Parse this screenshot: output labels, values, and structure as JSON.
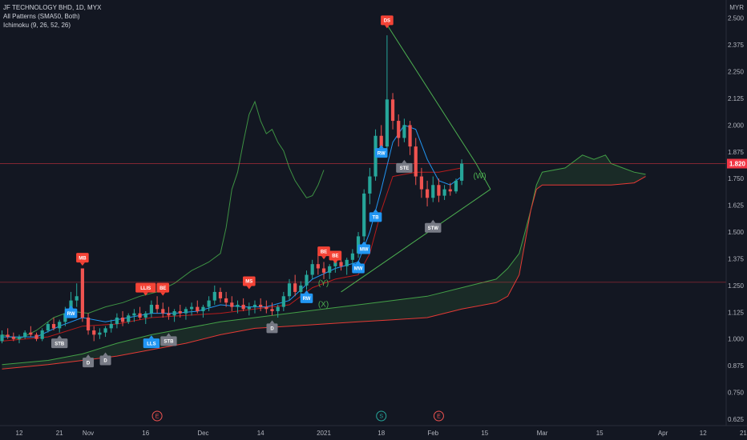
{
  "legend": {
    "title": "JF TECHNOLOGY BHD, 1D, MYX",
    "indicator1": "All Patterns (SMA50, Both)",
    "indicator2": "Ichimoku (9, 26, 52, 26)"
  },
  "chart_data": {
    "type": "candlestick",
    "currency": "MYR",
    "ylim": [
      0.6,
      2.6
    ],
    "y_ticks": [
      0.625,
      0.75,
      0.875,
      1.0,
      1.125,
      1.25,
      1.375,
      1.5,
      1.625,
      1.75,
      1.875,
      2.0,
      2.125,
      2.25,
      2.375,
      2.5
    ],
    "y_tick_labels": [
      "0.625",
      "0.750",
      "0.875",
      "1.000",
      "1.125",
      "1.250",
      "1.375",
      "1.500",
      "1.625",
      "1.750",
      "1.875",
      "2.000",
      "2.125",
      "2.250",
      "2.375",
      "2.500"
    ],
    "x_ticks": [
      {
        "label": "12",
        "bar": 3
      },
      {
        "label": "21",
        "bar": 10
      },
      {
        "label": "Nov",
        "bar": 15
      },
      {
        "label": "16",
        "bar": 25
      },
      {
        "label": "Dec",
        "bar": 35
      },
      {
        "label": "14",
        "bar": 45
      },
      {
        "label": "2021",
        "bar": 56
      },
      {
        "label": "18",
        "bar": 66
      },
      {
        "label": "Feb",
        "bar": 75
      },
      {
        "label": "15",
        "bar": 84
      },
      {
        "label": "Mar",
        "bar": 94
      },
      {
        "label": "15",
        "bar": 104
      },
      {
        "label": "Apr",
        "bar": 115
      },
      {
        "label": "12",
        "bar": 122
      },
      {
        "label": "21",
        "bar": 129
      }
    ],
    "current_price": 1.82,
    "current_price_label": "1.820",
    "horizontal_line": 1.265,
    "candles": [
      [
        0.99,
        1.04,
        0.98,
        1.02
      ],
      [
        1.02,
        1.05,
        1.0,
        1.01
      ],
      [
        1.01,
        1.03,
        0.99,
        1.0
      ],
      [
        1.0,
        1.02,
        0.98,
        1.01
      ],
      [
        1.01,
        1.04,
        1.0,
        1.03
      ],
      [
        1.03,
        1.06,
        1.01,
        1.02
      ],
      [
        1.02,
        1.03,
        0.99,
        1.0
      ],
      [
        1.0,
        1.05,
        0.99,
        1.04
      ],
      [
        1.04,
        1.08,
        1.03,
        1.07
      ],
      [
        1.07,
        1.1,
        1.04,
        1.05
      ],
      [
        1.05,
        1.09,
        1.03,
        1.08
      ],
      [
        1.08,
        1.15,
        1.06,
        1.12
      ],
      [
        1.12,
        1.22,
        1.1,
        1.18
      ],
      [
        1.18,
        1.26,
        1.15,
        1.2
      ],
      [
        1.33,
        1.33,
        1.08,
        1.1
      ],
      [
        1.1,
        1.12,
        1.02,
        1.04
      ],
      [
        1.04,
        1.06,
        0.99,
        1.02
      ],
      [
        1.02,
        1.05,
        1.0,
        1.03
      ],
      [
        1.03,
        1.06,
        1.01,
        1.05
      ],
      [
        1.05,
        1.09,
        1.03,
        1.07
      ],
      [
        1.07,
        1.12,
        1.05,
        1.1
      ],
      [
        1.1,
        1.13,
        1.06,
        1.08
      ],
      [
        1.08,
        1.12,
        1.07,
        1.11
      ],
      [
        1.11,
        1.14,
        1.08,
        1.12
      ],
      [
        1.12,
        1.15,
        1.09,
        1.1
      ],
      [
        1.1,
        1.13,
        1.07,
        1.12
      ],
      [
        1.12,
        1.18,
        1.1,
        1.16
      ],
      [
        1.16,
        1.2,
        1.12,
        1.14
      ],
      [
        1.14,
        1.17,
        1.1,
        1.12
      ],
      [
        1.12,
        1.15,
        1.09,
        1.11
      ],
      [
        1.11,
        1.14,
        1.08,
        1.13
      ],
      [
        1.13,
        1.16,
        1.1,
        1.12
      ],
      [
        1.12,
        1.15,
        1.09,
        1.14
      ],
      [
        1.14,
        1.17,
        1.11,
        1.15
      ],
      [
        1.15,
        1.18,
        1.12,
        1.13
      ],
      [
        1.13,
        1.16,
        1.1,
        1.15
      ],
      [
        1.15,
        1.2,
        1.13,
        1.18
      ],
      [
        1.18,
        1.25,
        1.16,
        1.22
      ],
      [
        1.22,
        1.24,
        1.17,
        1.19
      ],
      [
        1.19,
        1.22,
        1.15,
        1.17
      ],
      [
        1.17,
        1.2,
        1.13,
        1.15
      ],
      [
        1.15,
        1.18,
        1.12,
        1.16
      ],
      [
        1.16,
        1.19,
        1.13,
        1.14
      ],
      [
        1.14,
        1.17,
        1.11,
        1.15
      ],
      [
        1.15,
        1.18,
        1.12,
        1.16
      ],
      [
        1.16,
        1.19,
        1.13,
        1.15
      ],
      [
        1.15,
        1.18,
        1.12,
        1.14
      ],
      [
        1.14,
        1.17,
        1.11,
        1.13
      ],
      [
        1.13,
        1.16,
        1.1,
        1.15
      ],
      [
        1.15,
        1.22,
        1.13,
        1.2
      ],
      [
        1.2,
        1.28,
        1.18,
        1.26
      ],
      [
        1.26,
        1.3,
        1.2,
        1.22
      ],
      [
        1.22,
        1.27,
        1.19,
        1.25
      ],
      [
        1.25,
        1.32,
        1.23,
        1.3
      ],
      [
        1.3,
        1.37,
        1.28,
        1.35
      ],
      [
        1.35,
        1.4,
        1.3,
        1.33
      ],
      [
        1.33,
        1.36,
        1.28,
        1.31
      ],
      [
        1.31,
        1.35,
        1.28,
        1.34
      ],
      [
        1.34,
        1.38,
        1.31,
        1.36
      ],
      [
        1.36,
        1.4,
        1.32,
        1.34
      ],
      [
        1.34,
        1.38,
        1.3,
        1.37
      ],
      [
        1.37,
        1.42,
        1.35,
        1.4
      ],
      [
        1.4,
        1.5,
        1.38,
        1.48
      ],
      [
        1.48,
        1.7,
        1.46,
        1.68
      ],
      [
        1.68,
        1.8,
        1.63,
        1.76
      ],
      [
        1.76,
        1.98,
        1.74,
        1.95
      ],
      [
        1.95,
        2.0,
        1.85,
        1.9
      ],
      [
        1.9,
        2.42,
        1.88,
        2.12
      ],
      [
        2.12,
        2.15,
        1.98,
        2.02
      ],
      [
        2.02,
        2.05,
        1.9,
        1.94
      ],
      [
        1.94,
        2.03,
        1.92,
        2.0
      ],
      [
        2.0,
        2.02,
        1.86,
        1.9
      ],
      [
        1.9,
        1.94,
        1.72,
        1.76
      ],
      [
        1.76,
        1.8,
        1.66,
        1.7
      ],
      [
        1.7,
        1.74,
        1.62,
        1.66
      ],
      [
        1.66,
        1.76,
        1.64,
        1.72
      ],
      [
        1.72,
        1.75,
        1.64,
        1.67
      ],
      [
        1.67,
        1.72,
        1.65,
        1.7
      ],
      [
        1.7,
        1.73,
        1.67,
        1.69
      ],
      [
        1.69,
        1.75,
        1.68,
        1.74
      ],
      [
        1.74,
        1.84,
        1.72,
        1.82
      ]
    ],
    "pattern_labels": [
      {
        "text": "MB",
        "bar": 14,
        "price": 1.38,
        "type": "bear"
      },
      {
        "text": "RW",
        "bar": 12,
        "price": 1.12,
        "type": "bull"
      },
      {
        "text": "STB",
        "bar": 10,
        "price": 0.98,
        "type": "neutral"
      },
      {
        "text": "D",
        "bar": 15,
        "price": 0.89,
        "type": "neutral"
      },
      {
        "text": "D",
        "bar": 18,
        "price": 0.9,
        "type": "neutral"
      },
      {
        "text": "LLIS",
        "bar": 25,
        "price": 1.24,
        "type": "bear"
      },
      {
        "text": "BE",
        "bar": 28,
        "price": 1.24,
        "type": "bear"
      },
      {
        "text": "LLS",
        "bar": 26,
        "price": 0.98,
        "type": "bull"
      },
      {
        "text": "STB",
        "bar": 29,
        "price": 0.99,
        "type": "neutral"
      },
      {
        "text": "MS",
        "bar": 43,
        "price": 1.27,
        "type": "bear"
      },
      {
        "text": "D",
        "bar": 47,
        "price": 1.05,
        "type": "neutral"
      },
      {
        "text": "RW",
        "bar": 53,
        "price": 1.19,
        "type": "bull"
      },
      {
        "text": "BE",
        "bar": 56,
        "price": 1.41,
        "type": "bear"
      },
      {
        "text": "BE",
        "bar": 58,
        "price": 1.39,
        "type": "bear"
      },
      {
        "text": "MW",
        "bar": 62,
        "price": 1.33,
        "type": "bull"
      },
      {
        "text": "MW",
        "bar": 63,
        "price": 1.42,
        "type": "bull"
      },
      {
        "text": "TB",
        "bar": 65,
        "price": 1.57,
        "type": "bull"
      },
      {
        "text": "RW",
        "bar": 66,
        "price": 1.87,
        "type": "bull"
      },
      {
        "text": "DS",
        "bar": 67,
        "price": 2.49,
        "type": "bear"
      },
      {
        "text": "STE",
        "bar": 70,
        "price": 1.8,
        "type": "neutral"
      },
      {
        "text": "STW",
        "bar": 75,
        "price": 1.52,
        "type": "neutral"
      }
    ],
    "wave_labels": [
      {
        "text": "(Y)",
        "bar": 55,
        "price": 1.25
      },
      {
        "text": "(X)",
        "bar": 55,
        "price": 1.15
      },
      {
        "text": "(W)",
        "bar": 82,
        "price": 1.75
      }
    ],
    "event_markers": [
      {
        "text": "E",
        "bar": 27,
        "color": "#ef5350"
      },
      {
        "text": "S",
        "bar": 66,
        "color": "#26a69a"
      },
      {
        "text": "E",
        "bar": 76,
        "color": "#ef5350"
      }
    ],
    "lagging_span": [
      [
        0,
        1.02
      ],
      [
        3,
        1.0
      ],
      [
        6,
        1.04
      ],
      [
        9,
        1.1
      ],
      [
        12,
        1.13
      ],
      [
        15,
        1.12
      ],
      [
        18,
        1.15
      ],
      [
        21,
        1.17
      ],
      [
        24,
        1.2
      ],
      [
        27,
        1.22
      ],
      [
        30,
        1.26
      ],
      [
        33,
        1.32
      ],
      [
        36,
        1.36
      ],
      [
        38,
        1.4
      ],
      [
        39,
        1.52
      ],
      [
        40,
        1.7
      ],
      [
        41,
        1.78
      ],
      [
        42,
        1.92
      ],
      [
        43,
        2.05
      ],
      [
        44,
        2.11
      ],
      [
        45,
        2.02
      ],
      [
        46,
        1.96
      ],
      [
        47,
        1.98
      ],
      [
        48,
        1.92
      ],
      [
        49,
        1.88
      ],
      [
        50,
        1.8
      ],
      [
        51,
        1.74
      ],
      [
        52,
        1.7
      ],
      [
        53,
        1.66
      ],
      [
        54,
        1.67
      ],
      [
        55,
        1.72
      ],
      [
        56,
        1.79
      ]
    ],
    "tenkan": [
      [
        0,
        1.01
      ],
      [
        6,
        1.01
      ],
      [
        10,
        1.06
      ],
      [
        14,
        1.1
      ],
      [
        18,
        1.08
      ],
      [
        22,
        1.1
      ],
      [
        26,
        1.12
      ],
      [
        30,
        1.12
      ],
      [
        34,
        1.13
      ],
      [
        38,
        1.16
      ],
      [
        42,
        1.15
      ],
      [
        46,
        1.15
      ],
      [
        50,
        1.18
      ],
      [
        54,
        1.28
      ],
      [
        58,
        1.33
      ],
      [
        62,
        1.36
      ],
      [
        64,
        1.5
      ],
      [
        66,
        1.7
      ],
      [
        68,
        1.92
      ],
      [
        70,
        2.0
      ],
      [
        72,
        1.98
      ],
      [
        74,
        1.84
      ],
      [
        76,
        1.74
      ],
      [
        78,
        1.72
      ],
      [
        80,
        1.76
      ]
    ],
    "kijun": [
      [
        0,
        0.99
      ],
      [
        8,
        1.01
      ],
      [
        14,
        1.06
      ],
      [
        20,
        1.07
      ],
      [
        26,
        1.1
      ],
      [
        32,
        1.11
      ],
      [
        38,
        1.12
      ],
      [
        44,
        1.14
      ],
      [
        50,
        1.16
      ],
      [
        54,
        1.24
      ],
      [
        58,
        1.28
      ],
      [
        62,
        1.3
      ],
      [
        64,
        1.4
      ],
      [
        66,
        1.6
      ],
      [
        68,
        1.76
      ],
      [
        72,
        1.78
      ],
      [
        76,
        1.78
      ],
      [
        80,
        1.8
      ]
    ],
    "cloud_span_a": [
      [
        0,
        0.88
      ],
      [
        8,
        0.9
      ],
      [
        14,
        0.93
      ],
      [
        20,
        0.98
      ],
      [
        26,
        1.02
      ],
      [
        32,
        1.05
      ],
      [
        38,
        1.08
      ],
      [
        44,
        1.1
      ],
      [
        50,
        1.12
      ],
      [
        56,
        1.14
      ],
      [
        62,
        1.16
      ],
      [
        68,
        1.18
      ],
      [
        74,
        1.2
      ],
      [
        80,
        1.24
      ],
      [
        86,
        1.28
      ],
      [
        88,
        1.33
      ],
      [
        90,
        1.4
      ],
      [
        91,
        1.5
      ],
      [
        92,
        1.6
      ],
      [
        93,
        1.72
      ],
      [
        94,
        1.78
      ],
      [
        98,
        1.8
      ],
      [
        101,
        1.86
      ],
      [
        103,
        1.84
      ],
      [
        105,
        1.86
      ],
      [
        106,
        1.82
      ],
      [
        108,
        1.8
      ],
      [
        110,
        1.78
      ],
      [
        112,
        1.77
      ]
    ],
    "cloud_span_b": [
      [
        0,
        0.86
      ],
      [
        8,
        0.88
      ],
      [
        14,
        0.9
      ],
      [
        20,
        0.92
      ],
      [
        26,
        0.95
      ],
      [
        32,
        0.98
      ],
      [
        38,
        1.02
      ],
      [
        44,
        1.05
      ],
      [
        50,
        1.06
      ],
      [
        56,
        1.07
      ],
      [
        62,
        1.08
      ],
      [
        68,
        1.09
      ],
      [
        74,
        1.1
      ],
      [
        80,
        1.14
      ],
      [
        86,
        1.17
      ],
      [
        88,
        1.2
      ],
      [
        90,
        1.3
      ],
      [
        91,
        1.45
      ],
      [
        92,
        1.6
      ],
      [
        93,
        1.7
      ],
      [
        94,
        1.72
      ],
      [
        106,
        1.72
      ],
      [
        110,
        1.73
      ],
      [
        112,
        1.76
      ]
    ]
  }
}
